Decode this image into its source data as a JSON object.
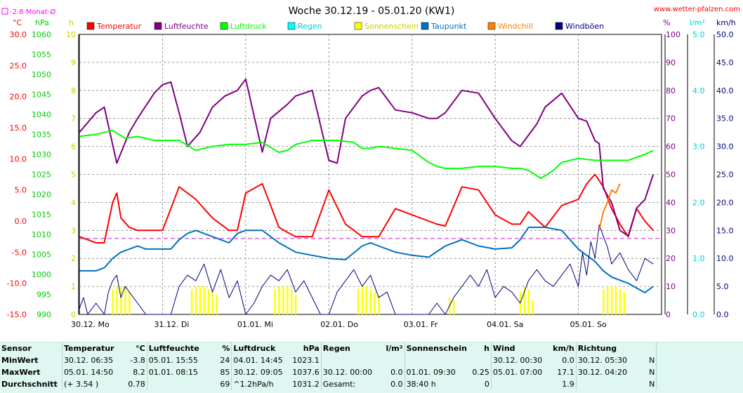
{
  "header": {
    "title": "Woche 30.12.19 - 05.01.20 (KW1)",
    "site": "www.wetter-pfalzen.com",
    "month_avg": "-2.8 Monat-Ø"
  },
  "chart_data": {
    "type": "line",
    "title": "Woche 30.12.19 - 05.01.20 (KW1)",
    "x_tick_labels": [
      "30.12. Mo",
      "31.12. Di",
      "01.01. Mi",
      "02.01. Do",
      "03.01. Fr",
      "04.01. Sa",
      "05.01. So"
    ],
    "axes": [
      {
        "unit": "°C",
        "color": "#ff0000",
        "range": [
          -15,
          30
        ],
        "ticks": [
          "30.0",
          "25.0",
          "20.0",
          "15.0",
          "10.0",
          "5.0",
          "0.0",
          "-5.0",
          "-10.0",
          "-15.0"
        ]
      },
      {
        "unit": "hPa",
        "color": "#00cc00",
        "range": [
          990,
          1060
        ],
        "ticks": [
          "1060",
          "1055",
          "1050",
          "1045",
          "1040",
          "1035",
          "1030",
          "1025",
          "1020",
          "1015",
          "1010",
          "1005",
          "1000",
          "995",
          "990"
        ]
      },
      {
        "unit": "h",
        "color": "#cccc00",
        "range": [
          0,
          10
        ],
        "ticks": [
          "10",
          "9",
          "8",
          "7",
          "6",
          "5",
          "4",
          "3",
          "2",
          "1",
          "0"
        ]
      },
      {
        "unit": "%",
        "color": "#800080",
        "range": [
          0,
          100
        ],
        "ticks": [
          "100",
          "90",
          "80",
          "70",
          "60",
          "50",
          "40",
          "30",
          "20",
          "10",
          "0"
        ]
      },
      {
        "unit": "l/m²",
        "color": "#00cccc",
        "range": [
          0,
          5
        ],
        "ticks": [
          "5.0",
          "4.0",
          "3.0",
          "2.0",
          "1.0",
          "0.0"
        ]
      },
      {
        "unit": "km/h",
        "color": "#000080",
        "range": [
          0,
          50
        ],
        "ticks": [
          "50.0",
          "45.0",
          "40.0",
          "35.0",
          "30.0",
          "25.0",
          "20.0",
          "15.0",
          "10.0",
          "5.0",
          "0.0"
        ]
      }
    ],
    "legend": [
      "Temperatur",
      "Luftfeuchte",
      "Luftdruck",
      "Regen",
      "Sonnenschein",
      "Taupunkt",
      "Windchill",
      "Windböen"
    ],
    "legend_colors": [
      "#ff0000",
      "#800080",
      "#00ff00",
      "#00ffff",
      "#ffff00",
      "#0070c0",
      "#ff8000",
      "#000080"
    ],
    "month_avg_temp": -2.8,
    "series": [
      {
        "name": "Temperatur",
        "color": "#ff0000",
        "unit": "°C",
        "x": [
          0,
          0.1,
          0.2,
          0.3,
          0.4,
          0.45,
          0.5,
          0.6,
          0.7,
          0.9,
          1.0,
          1.2,
          1.4,
          1.5,
          1.6,
          1.8,
          1.9,
          2.0,
          2.2,
          2.4,
          2.5,
          2.6,
          2.8,
          3.0,
          3.2,
          3.4,
          3.5,
          3.6,
          3.8,
          4.0,
          4.2,
          4.3,
          4.4,
          4.6,
          4.8,
          5.0,
          5.2,
          5.3,
          5.4,
          5.6,
          5.8,
          6.0,
          6.1,
          6.2,
          6.3,
          6.4,
          6.5,
          6.6,
          6.7,
          6.8,
          6.9
        ],
        "y": [
          -2.5,
          -3.0,
          -3.5,
          -3.5,
          3.0,
          4.5,
          0.5,
          -1.0,
          -1.5,
          -1.5,
          -1.5,
          5.5,
          3.5,
          2.0,
          0.5,
          -1.5,
          -1.5,
          4.5,
          6.0,
          -1.0,
          -1.8,
          -2.5,
          -2.5,
          5.0,
          -0.5,
          -2.5,
          -2.5,
          -2.5,
          2.0,
          1.0,
          0.0,
          -0.5,
          -0.8,
          5.5,
          5.0,
          1.0,
          -0.5,
          -0.5,
          1.5,
          -1.0,
          2.5,
          3.5,
          6.0,
          7.5,
          5.5,
          2.0,
          -0.5,
          -2.5,
          2.0,
          0.0,
          -1.5
        ]
      },
      {
        "name": "Luftfeuchte",
        "color": "#800080",
        "unit": "%",
        "x": [
          0,
          0.2,
          0.3,
          0.45,
          0.6,
          0.7,
          0.9,
          1.0,
          1.1,
          1.2,
          1.3,
          1.45,
          1.6,
          1.75,
          1.9,
          2.0,
          2.2,
          2.3,
          2.5,
          2.6,
          2.8,
          3.0,
          3.1,
          3.2,
          3.4,
          3.5,
          3.6,
          3.8,
          4.0,
          4.2,
          4.3,
          4.4,
          4.6,
          4.8,
          5.0,
          5.2,
          5.3,
          5.5,
          5.6,
          5.8,
          6.0,
          6.1,
          6.2,
          6.25,
          6.3,
          6.4,
          6.5,
          6.6,
          6.7,
          6.8,
          6.9
        ],
        "y": [
          65,
          72,
          74,
          54,
          65,
          70,
          79,
          82,
          83,
          72,
          60,
          65,
          74,
          78,
          80,
          84,
          58,
          70,
          75,
          78,
          80,
          55,
          54,
          70,
          78,
          80,
          81,
          73,
          72,
          70,
          70,
          72,
          80,
          79,
          70,
          62,
          60,
          68,
          74,
          79,
          70,
          69,
          62,
          61,
          45,
          40,
          30,
          28,
          38,
          41,
          50
        ]
      },
      {
        "name": "Luftdruck",
        "color": "#00ff00",
        "unit": "hPa",
        "x": [
          0,
          0.2,
          0.4,
          0.55,
          0.7,
          0.9,
          1.0,
          1.2,
          1.4,
          1.5,
          1.6,
          1.8,
          2.0,
          2.2,
          2.4,
          2.5,
          2.6,
          2.8,
          3.0,
          3.1,
          3.3,
          3.4,
          3.5,
          3.6,
          3.8,
          4.0,
          4.2,
          4.3,
          4.4,
          4.6,
          4.8,
          5.0,
          5.2,
          5.3,
          5.4,
          5.55,
          5.7,
          5.8,
          6.0,
          6.2,
          6.3,
          6.4,
          6.6,
          6.8,
          6.9
        ],
        "y": [
          1034.5,
          1035.0,
          1036.0,
          1034.0,
          1034.5,
          1033.5,
          1033.5,
          1033.5,
          1031.0,
          1031.5,
          1032.0,
          1032.5,
          1032.5,
          1033.0,
          1030.5,
          1031.0,
          1032.5,
          1033.5,
          1033.5,
          1033.5,
          1033.0,
          1031.5,
          1031.5,
          1032.0,
          1031.5,
          1031.0,
          1028.0,
          1027.0,
          1026.5,
          1026.5,
          1027.0,
          1027.0,
          1026.5,
          1026.5,
          1026.0,
          1024.0,
          1026.0,
          1028.0,
          1029.0,
          1028.5,
          1028.5,
          1028.5,
          1028.5,
          1030.0,
          1031.0
        ]
      },
      {
        "name": "Taupunkt",
        "color": "#0070c0",
        "unit": "°C",
        "x": [
          0,
          0.2,
          0.3,
          0.4,
          0.5,
          0.6,
          0.7,
          0.8,
          1.0,
          1.1,
          1.2,
          1.3,
          1.4,
          1.6,
          1.8,
          1.9,
          2.0,
          2.2,
          2.4,
          2.6,
          2.8,
          3.0,
          3.2,
          3.4,
          3.5,
          3.6,
          3.8,
          4.0,
          4.2,
          4.4,
          4.6,
          4.8,
          5.0,
          5.2,
          5.3,
          5.4,
          5.6,
          5.8,
          5.9,
          6.0,
          6.1,
          6.2,
          6.3,
          6.4,
          6.6,
          6.8,
          6.9
        ],
        "y": [
          -8.0,
          -8.0,
          -7.5,
          -6.0,
          -5.0,
          -4.5,
          -4.0,
          -4.5,
          -4.5,
          -4.5,
          -3.0,
          -2.0,
          -1.5,
          -2.5,
          -3.5,
          -2.0,
          -1.5,
          -1.5,
          -3.5,
          -5.0,
          -5.5,
          -6.0,
          -6.2,
          -4.0,
          -3.5,
          -4.0,
          -5.0,
          -5.5,
          -5.8,
          -4.0,
          -3.0,
          -4.0,
          -4.5,
          -4.3,
          -3.0,
          -1.0,
          -1.0,
          -1.5,
          -3.0,
          -4.5,
          -5.5,
          -6.5,
          -8.0,
          -9.0,
          -10.0,
          -11.5,
          -10.5
        ]
      },
      {
        "name": "Windböen",
        "color": "#000080",
        "unit": "km/h",
        "x": [
          0,
          0.05,
          0.1,
          0.2,
          0.3,
          0.35,
          0.4,
          0.45,
          0.5,
          0.55,
          0.6,
          0.7,
          0.8,
          0.9,
          1.0,
          1.1,
          1.2,
          1.3,
          1.4,
          1.5,
          1.6,
          1.7,
          1.8,
          1.9,
          2.0,
          2.1,
          2.2,
          2.3,
          2.4,
          2.5,
          2.6,
          2.7,
          2.8,
          2.9,
          3.0,
          3.1,
          3.2,
          3.3,
          3.4,
          3.5,
          3.6,
          3.7,
          3.8,
          3.9,
          4.0,
          4.1,
          4.2,
          4.3,
          4.4,
          4.5,
          4.6,
          4.7,
          4.8,
          4.9,
          5.0,
          5.1,
          5.2,
          5.3,
          5.4,
          5.5,
          5.6,
          5.7,
          5.8,
          5.9,
          6.0,
          6.05,
          6.1,
          6.15,
          6.2,
          6.25,
          6.3,
          6.35,
          6.4,
          6.5,
          6.6,
          6.7,
          6.8,
          6.9
        ],
        "y": [
          1,
          3,
          0,
          2,
          0,
          4,
          6,
          7,
          3,
          5,
          4,
          2,
          0,
          0,
          0,
          0,
          5,
          7,
          6,
          9,
          4,
          8,
          3,
          6,
          0,
          2,
          5,
          7,
          6,
          8,
          4,
          6,
          3,
          0,
          0,
          4,
          6,
          8,
          5,
          7,
          3,
          4,
          0,
          0,
          0,
          0,
          0,
          2,
          0,
          3,
          5,
          7,
          5,
          8,
          3,
          5,
          4,
          2,
          6,
          8,
          6,
          5,
          7,
          9,
          5,
          11,
          7,
          13,
          10,
          16,
          14,
          12,
          9,
          11,
          8,
          6,
          10,
          9
        ]
      },
      {
        "name": "Sonnenschein",
        "color": "#ffff00",
        "unit": "h",
        "x": [
          0.4,
          0.45,
          0.5,
          0.55,
          0.6,
          1.35,
          1.4,
          1.45,
          1.5,
          1.55,
          1.6,
          1.65,
          2.35,
          2.4,
          2.45,
          2.5,
          2.55,
          2.6,
          3.35,
          3.4,
          3.45,
          3.5,
          3.55,
          3.6,
          4.45,
          4.5,
          5.3,
          5.35,
          5.4,
          5.45,
          6.3,
          6.35,
          6.4,
          6.45,
          6.5,
          6.55
        ],
        "y": [
          0.9,
          1.0,
          1.0,
          1.0,
          0.8,
          0.9,
          1.0,
          1.0,
          1.0,
          0.9,
          0.8,
          0.7,
          0.9,
          1.0,
          1.0,
          1.0,
          0.9,
          0.7,
          0.9,
          1.0,
          1.0,
          0.9,
          0.8,
          0.7,
          0.6,
          0.5,
          0.8,
          1.0,
          0.9,
          0.5,
          0.9,
          1.0,
          1.0,
          1.0,
          0.9,
          0.8
        ]
      },
      {
        "name": "Windchill",
        "color": "#ff8000",
        "unit": "°C",
        "x": [
          6.25,
          6.3,
          6.35,
          6.4,
          6.45,
          6.5
        ],
        "y": [
          -1.5,
          1.5,
          3.0,
          5.0,
          4.5,
          6.0
        ]
      }
    ]
  },
  "stats": {
    "headers": {
      "sensor": "Sensor",
      "temp": "Temperatur",
      "temp_u": "°C",
      "hum": "Luftfeuchte",
      "hum_u": "%",
      "press": "Luftdruck",
      "press_u": "hPa",
      "rain": "Regen",
      "rain_u": "l/m²",
      "sun": "Sonnenschein",
      "sun_u": "h",
      "wind": "Wind",
      "wind_u": "km/h",
      "dir": "Richtung"
    },
    "rows": [
      {
        "label": "MinWert",
        "temp_t": "30.12.  06:35",
        "temp_v": "-3.8",
        "hum_t": "05.01.  15:55",
        "hum_v": "24",
        "press_t": "04.01.  14:45",
        "press_v": "1023.1",
        "rain_t": "",
        "rain_v": "",
        "sun_t": "",
        "sun_v": "",
        "wind_t": "30.12.  00:30",
        "wind_v": "0.0",
        "dir_t": "30.12.  05:30",
        "dir_v": "N"
      },
      {
        "label": "MaxWert",
        "temp_t": "05.01.  14:50",
        "temp_v": "8.2",
        "hum_t": "01.01.  08:15",
        "hum_v": "85",
        "press_t": "30.12.  09:05",
        "press_v": "1037.6",
        "rain_t": "30.12.  00:00",
        "rain_v": "0.0",
        "sun_t": "01.01.  09:30",
        "sun_v": "0.25",
        "wind_t": "05.01.  07:00",
        "wind_v": "17.1",
        "dir_t": "30.12.  04:20",
        "dir_v": "N"
      },
      {
        "label": "Durchschnitt",
        "temp_t": "(+ 3.54 )",
        "temp_v": "0.78",
        "hum_t": "",
        "hum_v": "69",
        "press_t": "^1.2hPa/h",
        "press_v": "1031.2",
        "rain_t": "Gesamt:",
        "rain_v": "0.0",
        "sun_t": "38:40 h",
        "sun_v": "0",
        "wind_t": "",
        "wind_v": "1.9",
        "dir_t": "",
        "dir_v": "N"
      }
    ]
  }
}
